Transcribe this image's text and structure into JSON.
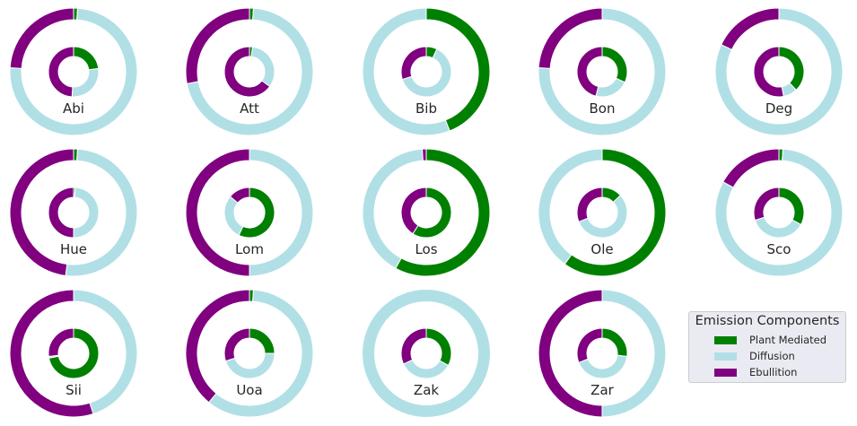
{
  "chart_data": {
    "type": "nested-donut",
    "components": [
      "Plant Mediated",
      "Diffusion",
      "Ebullition"
    ],
    "colors": {
      "Plant Mediated": "#008000",
      "Diffusion": "#b0e0e6",
      "Ebullition": "#800080"
    },
    "legend": {
      "title": "Emission Components",
      "placement": "bottom-right"
    },
    "sites": [
      {
        "name": "Abi",
        "outer": [
          1,
          75,
          24
        ],
        "inner": [
          23,
          28,
          49
        ]
      },
      {
        "name": "Att",
        "outer": [
          1,
          71,
          28
        ],
        "inner": [
          2,
          33,
          65
        ]
      },
      {
        "name": "Bib",
        "outer": [
          44,
          56,
          0
        ],
        "inner": [
          7,
          63,
          30
        ]
      },
      {
        "name": "Bon",
        "outer": [
          0,
          76,
          24
        ],
        "inner": [
          32,
          22,
          46
        ]
      },
      {
        "name": "Deg",
        "outer": [
          0,
          82,
          18
        ],
        "inner": [
          38,
          9,
          53
        ]
      },
      {
        "name": "Hue",
        "outer": [
          1,
          51,
          48
        ],
        "inner": [
          1,
          49,
          50
        ]
      },
      {
        "name": "Lom",
        "outer": [
          0,
          50,
          50
        ],
        "inner": [
          57,
          29,
          14
        ]
      },
      {
        "name": "Los",
        "outer": [
          58,
          41,
          1
        ],
        "inner": [
          59,
          0,
          41
        ]
      },
      {
        "name": "Ole",
        "outer": [
          60,
          40,
          0
        ],
        "inner": [
          13,
          56,
          31
        ]
      },
      {
        "name": "Sco",
        "outer": [
          1,
          82,
          17
        ],
        "inner": [
          33,
          37,
          30
        ]
      },
      {
        "name": "Sii",
        "outer": [
          0,
          45,
          55
        ],
        "inner": [
          72,
          1,
          27
        ]
      },
      {
        "name": "Uoa",
        "outer": [
          1,
          60,
          39
        ],
        "inner": [
          25,
          45,
          30
        ]
      },
      {
        "name": "Zak",
        "outer": [
          0,
          100,
          0
        ],
        "inner": [
          33,
          35,
          32
        ]
      },
      {
        "name": "Zar",
        "outer": [
          0,
          50,
          50
        ],
        "inner": [
          27,
          42,
          31
        ]
      }
    ]
  }
}
